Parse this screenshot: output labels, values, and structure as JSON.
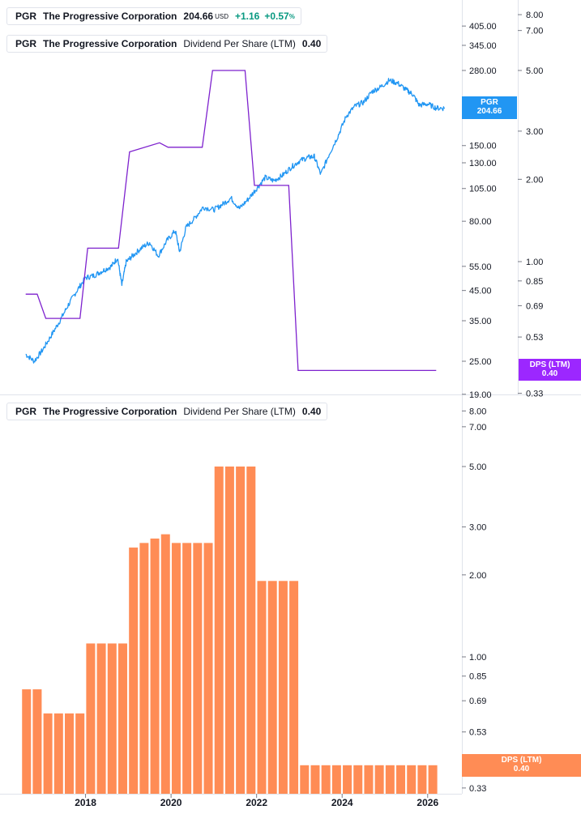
{
  "colors": {
    "price_line": "#2196f3",
    "dps_line": "#7e22ce",
    "bar_fill": "#ff8c55",
    "positive": "#089981",
    "dps_tag": "#9c27ff",
    "price_tag": "#2196f3",
    "bar_tag": "#ff8c55"
  },
  "legends": {
    "price": {
      "ticker": "PGR",
      "name": "The Progressive Corporation",
      "price": "204.66",
      "currency": "USD",
      "change": "+1.16",
      "change_pct": "+0.57",
      "pct_sign": "%"
    },
    "dps_top": {
      "ticker": "PGR",
      "name": "The Progressive Corporation",
      "metric": "Dividend Per Share (LTM)",
      "value": "0.40"
    },
    "dps_bottom": {
      "ticker": "PGR",
      "name": "The Progressive Corporation",
      "metric": "Dividend Per Share (LTM)",
      "value": "0.40"
    }
  },
  "tags": {
    "price": {
      "label": "PGR",
      "value": "204.66"
    },
    "dps_top": {
      "label": "DPS (LTM)",
      "value": "0.40"
    },
    "dps_bottom": {
      "label": "DPS (LTM)",
      "value": "0.40"
    }
  },
  "chart_data": [
    {
      "type": "line",
      "panel": "top",
      "scale": "log",
      "price_axis_ticks": [
        19,
        25,
        35,
        45,
        55,
        80,
        105,
        130,
        150,
        280,
        345,
        405
      ],
      "price_axis_labels": [
        "19.00",
        "25.00",
        "35.00",
        "45.00",
        "55.00",
        "80.00",
        "105.00",
        "130.00",
        "150.00",
        "280.00",
        "345.00",
        "405.00"
      ],
      "dps_axis_ticks": [
        0.33,
        0.53,
        0.69,
        0.85,
        1.0,
        2.0,
        3.0,
        5.0,
        7.0,
        8.0
      ],
      "dps_axis_labels": [
        "0.33",
        "0.53",
        "0.69",
        "0.85",
        "1.00",
        "2.00",
        "3.00",
        "5.00",
        "7.00",
        "8.00"
      ],
      "series": [
        {
          "name": "PGR",
          "axis": "price",
          "points": [
            [
              2016.6,
              26.5
            ],
            [
              2016.8,
              25
            ],
            [
              2017.0,
              27.5
            ],
            [
              2017.2,
              31
            ],
            [
              2017.4,
              35
            ],
            [
              2017.6,
              40
            ],
            [
              2017.8,
              45
            ],
            [
              2018.0,
              50
            ],
            [
              2018.2,
              51
            ],
            [
              2018.4,
              53
            ],
            [
              2018.6,
              55
            ],
            [
              2018.75,
              59
            ],
            [
              2018.85,
              47
            ],
            [
              2018.95,
              57
            ],
            [
              2019.1,
              60
            ],
            [
              2019.3,
              64
            ],
            [
              2019.5,
              67
            ],
            [
              2019.7,
              60
            ],
            [
              2019.9,
              68
            ],
            [
              2020.1,
              74
            ],
            [
              2020.2,
              62
            ],
            [
              2020.35,
              76
            ],
            [
              2020.55,
              82
            ],
            [
              2020.75,
              90
            ],
            [
              2021.0,
              88
            ],
            [
              2021.2,
              92
            ],
            [
              2021.4,
              97
            ],
            [
              2021.6,
              89
            ],
            [
              2021.8,
              96
            ],
            [
              2022.0,
              105
            ],
            [
              2022.2,
              115
            ],
            [
              2022.4,
              112
            ],
            [
              2022.6,
              117
            ],
            [
              2022.8,
              125
            ],
            [
              2023.0,
              132
            ],
            [
              2023.2,
              136
            ],
            [
              2023.35,
              137
            ],
            [
              2023.5,
              118
            ],
            [
              2023.7,
              140
            ],
            [
              2023.9,
              162
            ],
            [
              2024.1,
              192
            ],
            [
              2024.3,
              208
            ],
            [
              2024.5,
              215
            ],
            [
              2024.7,
              235
            ],
            [
              2024.9,
              244
            ],
            [
              2025.1,
              258
            ],
            [
              2025.3,
              252
            ],
            [
              2025.5,
              238
            ],
            [
              2025.65,
              230
            ],
            [
              2025.8,
              210
            ],
            [
              2026.0,
              212
            ],
            [
              2026.2,
              205
            ],
            [
              2026.4,
              204.66
            ]
          ]
        },
        {
          "name": "DPS (LTM)",
          "axis": "dps",
          "points": [
            [
              2016.6,
              0.76
            ],
            [
              2016.87,
              0.76
            ],
            [
              2017.07,
              0.62
            ],
            [
              2017.87,
              0.62
            ],
            [
              2018.05,
              1.12
            ],
            [
              2018.77,
              1.12
            ],
            [
              2019.03,
              2.52
            ],
            [
              2019.73,
              2.72
            ],
            [
              2019.93,
              2.62
            ],
            [
              2020.73,
              2.62
            ],
            [
              2020.97,
              5.0
            ],
            [
              2021.73,
              5.0
            ],
            [
              2021.95,
              1.9
            ],
            [
              2022.75,
              1.9
            ],
            [
              2022.97,
              0.4
            ],
            [
              2026.2,
              0.4
            ]
          ]
        }
      ]
    },
    {
      "type": "bar",
      "panel": "bottom",
      "scale": "log",
      "xlabel": "",
      "ylabel": "",
      "x_ticks": [
        2018,
        2020,
        2022,
        2024,
        2026
      ],
      "x_tick_labels": [
        "2018",
        "2020",
        "2022",
        "2024",
        "2026"
      ],
      "dps_axis_ticks": [
        0.33,
        0.53,
        0.69,
        0.85,
        1.0,
        2.0,
        3.0,
        5.0,
        7.0,
        8.0
      ],
      "dps_axis_labels": [
        "0.33",
        "0.53",
        "0.69",
        "0.85",
        "1.00",
        "2.00",
        "3.00",
        "5.00",
        "7.00",
        "8.00"
      ],
      "series": [
        {
          "name": "Dividend Per Share (LTM)",
          "x": [
            2016.62,
            2016.87,
            2017.12,
            2017.37,
            2017.62,
            2017.87,
            2018.12,
            2018.37,
            2018.62,
            2018.87,
            2019.12,
            2019.37,
            2019.62,
            2019.87,
            2020.12,
            2020.37,
            2020.62,
            2020.87,
            2021.12,
            2021.37,
            2021.62,
            2021.87,
            2022.12,
            2022.37,
            2022.62,
            2022.87,
            2023.12,
            2023.37,
            2023.62,
            2023.87,
            2024.12,
            2024.37,
            2024.62,
            2024.87,
            2025.12,
            2025.37,
            2025.62,
            2025.87,
            2026.12
          ],
          "values": [
            0.76,
            0.76,
            0.62,
            0.62,
            0.62,
            0.62,
            1.12,
            1.12,
            1.12,
            1.12,
            2.52,
            2.62,
            2.72,
            2.82,
            2.62,
            2.62,
            2.62,
            2.62,
            5.0,
            5.0,
            5.0,
            5.0,
            1.9,
            1.9,
            1.9,
            1.9,
            0.4,
            0.4,
            0.4,
            0.4,
            0.4,
            0.4,
            0.4,
            0.4,
            0.4,
            0.4,
            0.4,
            0.4,
            0.4
          ]
        }
      ]
    }
  ]
}
